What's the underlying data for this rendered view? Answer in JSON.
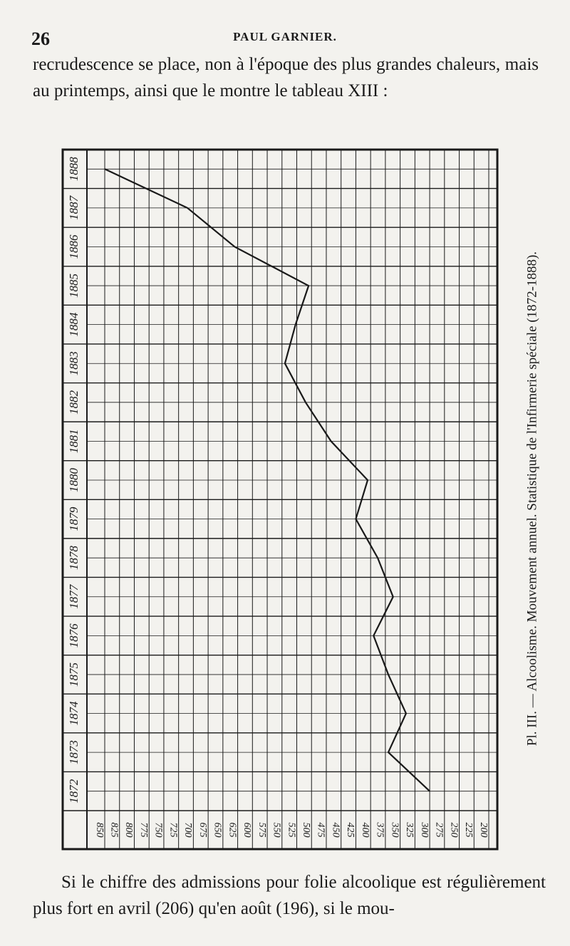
{
  "header": {
    "page_number": "26",
    "running_title": "PAUL GARNIER."
  },
  "paragraphs": [
    "recrudescence se place, non à l'époque des plus grandes chaleurs, mais au printemps, ainsi que le montre le tableau XIII :",
    "Si le chiffre des admissions pour folie alcoolique est régulièrement plus fort en avril (206) qu'en août (196), si le mou-"
  ],
  "chart_data": {
    "type": "line",
    "title": "Pl. III. — Alcoolisme. Mouvement annuel. Statistique de l'Infirmerie spéciale (1872-1888).",
    "categories": [
      "1872",
      "1873",
      "1874",
      "1875",
      "1876",
      "1877",
      "1878",
      "1879",
      "1880",
      "1881",
      "1882",
      "1883",
      "1884",
      "1885",
      "1886",
      "1887",
      "1888"
    ],
    "values": [
      300,
      370,
      340,
      370,
      395,
      362,
      388,
      425,
      405,
      467,
      510,
      545,
      527,
      505,
      630,
      710,
      850
    ],
    "color": "#1a1a1a",
    "xlim": [
      850,
      200
    ],
    "xticks": [
      850,
      825,
      800,
      775,
      750,
      725,
      700,
      675,
      650,
      625,
      600,
      575,
      550,
      525,
      500,
      475,
      450,
      425,
      400,
      375,
      350,
      325,
      300,
      275,
      250,
      225,
      200
    ],
    "grid": true
  }
}
